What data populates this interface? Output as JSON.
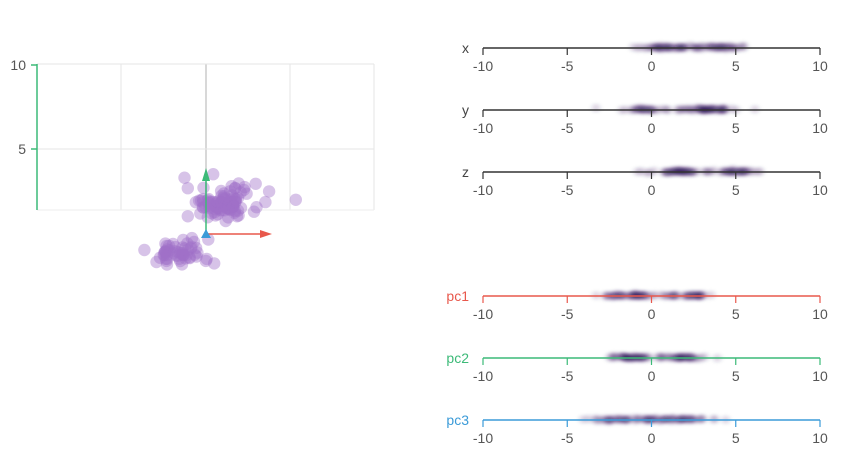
{
  "chart_data": {
    "type": "scatter",
    "scatter3d": {
      "ticks": [
        {
          "value": 10,
          "label": "10"
        },
        {
          "value": 5,
          "label": "5"
        }
      ],
      "grid": true,
      "point_color": "#a070c8",
      "arrow_colors": {
        "pc1": "#e8584c",
        "pc2": "#3cba78",
        "pc3": "#3b9bd8"
      },
      "clusters": [
        {
          "n": 95,
          "cx": 1.0,
          "cy": 3.3,
          "spread": 1.1
        },
        {
          "n": 55,
          "cx": -1.6,
          "cy": -2.0,
          "spread": 0.9
        }
      ]
    },
    "strips": [
      {
        "name": "x",
        "color": "#333333",
        "min": -10,
        "max": 10,
        "clusters": [
          {
            "mu": 1.2,
            "sd": 1.0,
            "w": 0.6
          },
          {
            "mu": 4.2,
            "sd": 0.7,
            "w": 0.4
          }
        ]
      },
      {
        "name": "y",
        "color": "#333333",
        "min": -10,
        "max": 10,
        "clusters": [
          {
            "mu": -0.3,
            "sd": 0.7,
            "w": 0.35
          },
          {
            "mu": 3.3,
            "sd": 0.9,
            "w": 0.65
          }
        ]
      },
      {
        "name": "z",
        "color": "#333333",
        "min": -10,
        "max": 10,
        "clusters": [
          {
            "mu": 1.8,
            "sd": 1.1,
            "w": 0.6
          },
          {
            "mu": 5.0,
            "sd": 0.8,
            "w": 0.4
          }
        ]
      },
      {
        "name": "pc1",
        "color": "#e8584c",
        "min": -10,
        "max": 10,
        "clusters": [
          {
            "mu": -1.0,
            "sd": 1.0,
            "w": 0.6
          },
          {
            "mu": 2.2,
            "sd": 0.6,
            "w": 0.4
          }
        ]
      },
      {
        "name": "pc2",
        "color": "#3cba78",
        "min": -10,
        "max": 10,
        "clusters": [
          {
            "mu": -1.2,
            "sd": 0.8,
            "w": 0.55
          },
          {
            "mu": 2.0,
            "sd": 0.7,
            "w": 0.45
          }
        ]
      },
      {
        "name": "pc3",
        "color": "#3b9bd8",
        "min": -10,
        "max": 10,
        "clusters": [
          {
            "mu": -1.5,
            "sd": 1.1,
            "w": 0.5
          },
          {
            "mu": 1.5,
            "sd": 1.1,
            "w": 0.5
          }
        ]
      }
    ],
    "tick_values": [
      -10,
      -5,
      0,
      5,
      10
    ],
    "tick_labels": [
      "-10",
      "-5",
      "0",
      "5",
      "10"
    ]
  }
}
